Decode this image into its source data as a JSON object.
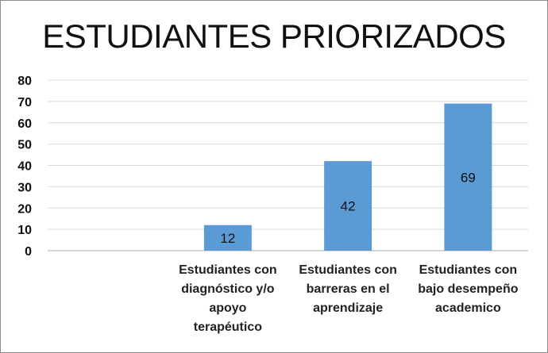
{
  "chart_data": {
    "type": "bar",
    "title": "ESTUDIANTES PRIORIZADOS",
    "xlabel": "",
    "ylabel": "",
    "ylim": [
      0,
      80
    ],
    "yticks": [
      0,
      10,
      20,
      30,
      40,
      50,
      60,
      70,
      80
    ],
    "grid": true,
    "legend": "none",
    "bar_color": "#5b9bd5",
    "categories": [
      "",
      "Estudiantes con diagnóstico y/o apoyo terapéutico",
      "Estudiantes con barreras en el aprendizaje",
      "Estudiantes con bajo desempeño academico"
    ],
    "category_lines": [
      [],
      [
        "Estudiantes con",
        "diagnóstico y/o",
        "apoyo",
        "terapéutico"
      ],
      [
        "Estudiantes con",
        "barreras en el",
        "aprendizaje"
      ],
      [
        "Estudiantes con",
        "bajo desempeño",
        "academico"
      ]
    ],
    "values": [
      null,
      12,
      42,
      69
    ],
    "data_labels": [
      "",
      "12",
      "42",
      "69"
    ]
  }
}
